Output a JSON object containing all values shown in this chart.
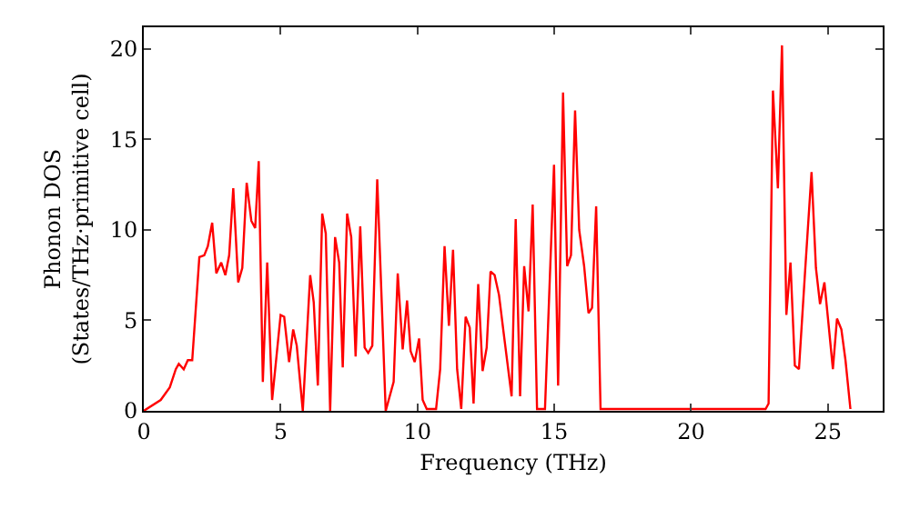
{
  "chart_data": {
    "type": "line",
    "xlabel": "Frequency (THz)",
    "ylabel": "Phonon DOS\n(States/THz·primitive cell)",
    "xlim": [
      0,
      27
    ],
    "ylim": [
      0,
      21.2
    ],
    "xticks": [
      0,
      5,
      10,
      15,
      20,
      25
    ],
    "yticks": [
      0,
      5,
      10,
      15,
      20
    ],
    "grid": false,
    "marker": "none",
    "line_style": "solid",
    "series": [
      {
        "color": "#ff0000",
        "x": [
          0,
          0.62,
          0.95,
          1.17,
          1.28,
          1.46,
          1.61,
          1.77,
          2.03,
          2.21,
          2.34,
          2.5,
          2.65,
          2.83,
          2.98,
          3.12,
          3.27,
          3.45,
          3.6,
          3.76,
          3.93,
          4.07,
          4.2,
          4.35,
          4.51,
          4.69,
          5.0,
          5.13,
          5.31,
          5.46,
          5.59,
          5.81,
          6.08,
          6.21,
          6.36,
          6.52,
          6.65,
          6.81,
          6.99,
          7.14,
          7.27,
          7.43,
          7.58,
          7.74,
          7.91,
          8.07,
          8.2,
          8.35,
          8.53,
          8.84,
          9.13,
          9.28,
          9.46,
          9.62,
          9.75,
          9.9,
          10.06,
          10.19,
          10.34,
          10.68,
          10.83,
          10.99,
          11.15,
          11.3,
          11.45,
          11.6,
          11.76,
          11.91,
          12.05,
          12.22,
          12.38,
          12.53,
          12.67,
          12.82,
          12.98,
          13.15,
          13.44,
          13.59,
          13.75,
          13.9,
          14.06,
          14.21,
          14.37,
          14.66,
          14.99,
          15.14,
          15.32,
          15.47,
          15.61,
          15.76,
          15.91,
          16.09,
          16.25,
          16.38,
          16.53,
          16.69,
          22.72,
          22.83,
          22.99,
          23.17,
          23.32,
          23.48,
          23.63,
          23.79,
          23.94,
          24.16,
          24.4,
          24.56,
          24.71,
          24.87,
          25.02,
          25.18,
          25.33,
          25.49,
          25.64,
          25.82
        ],
        "values": [
          0,
          0.6,
          1.3,
          2.3,
          2.6,
          2.3,
          2.8,
          2.8,
          8.5,
          8.6,
          9.1,
          10.4,
          7.6,
          8.2,
          7.5,
          8.6,
          12.3,
          7.1,
          7.9,
          12.6,
          10.5,
          10.1,
          13.8,
          1.6,
          8.2,
          0.6,
          5.3,
          5.2,
          2.7,
          4.5,
          3.6,
          0,
          7.5,
          6.0,
          1.4,
          10.9,
          9.8,
          0,
          9.6,
          8.2,
          2.4,
          10.9,
          9.6,
          3.0,
          10.2,
          3.5,
          3.2,
          3.6,
          12.8,
          0,
          1.6,
          7.6,
          3.4,
          6.1,
          3.3,
          2.7,
          4.0,
          0.6,
          0.1,
          0.1,
          2.3,
          9.1,
          4.7,
          8.9,
          2.3,
          0.1,
          5.2,
          4.6,
          0.4,
          7.0,
          2.2,
          3.5,
          7.7,
          7.5,
          6.4,
          4.3,
          0.8,
          10.6,
          0.8,
          8.0,
          5.5,
          11.4,
          0.1,
          0.1,
          13.6,
          1.4,
          17.6,
          8.0,
          8.6,
          16.6,
          10.0,
          8.0,
          5.4,
          5.7,
          11.3,
          0.1,
          0.1,
          0.4,
          17.7,
          12.3,
          20.2,
          5.3,
          8.2,
          2.5,
          2.3,
          7.6,
          13.2,
          7.9,
          5.9,
          7.1,
          4.8,
          2.3,
          5.1,
          4.5,
          2.8,
          0.1
        ]
      }
    ]
  }
}
